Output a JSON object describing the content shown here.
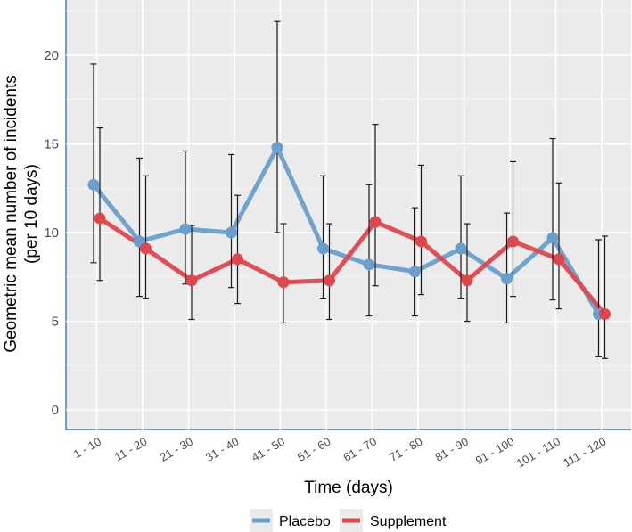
{
  "chart_data": {
    "type": "line",
    "title": "",
    "xlabel": "Time (days)",
    "ylabel_line1": "Geometric mean number of incidents",
    "ylabel_line2": "(per 10 days)",
    "ylim": [
      -1.2,
      23
    ],
    "yticks": [
      0,
      5,
      10,
      15,
      20
    ],
    "categories": [
      "1 - 10",
      "11 - 20",
      "21 - 30",
      "31 - 40",
      "41 - 50",
      "51 - 60",
      "61 - 70",
      "71 - 80",
      "81 - 90",
      "91 - 100",
      "101 - 110",
      "111 - 120"
    ],
    "legend_position": "bottom",
    "series": [
      {
        "name": "Placebo",
        "color": "#6a9fcd",
        "values": [
          12.7,
          9.5,
          10.2,
          10.0,
          14.8,
          9.1,
          8.2,
          7.8,
          9.1,
          7.4,
          9.7,
          5.4
        ],
        "err_low": [
          8.3,
          6.4,
          7.1,
          6.9,
          10.0,
          6.3,
          5.3,
          5.3,
          6.3,
          4.9,
          6.2,
          3.0
        ],
        "err_high": [
          19.5,
          14.2,
          14.6,
          14.4,
          21.9,
          13.2,
          12.7,
          11.4,
          13.2,
          11.1,
          15.3,
          9.6
        ]
      },
      {
        "name": "Supplement",
        "color": "#e0474c",
        "values": [
          10.8,
          9.1,
          7.3,
          8.5,
          7.2,
          7.3,
          10.6,
          9.5,
          7.3,
          9.5,
          8.5,
          5.4
        ],
        "err_low": [
          7.3,
          6.3,
          5.1,
          6.0,
          4.9,
          5.1,
          7.0,
          6.5,
          5.0,
          6.4,
          5.7,
          2.9
        ],
        "err_high": [
          15.9,
          13.2,
          10.4,
          12.1,
          10.5,
          10.5,
          16.1,
          13.8,
          10.5,
          14.0,
          12.8,
          9.8
        ]
      }
    ]
  }
}
